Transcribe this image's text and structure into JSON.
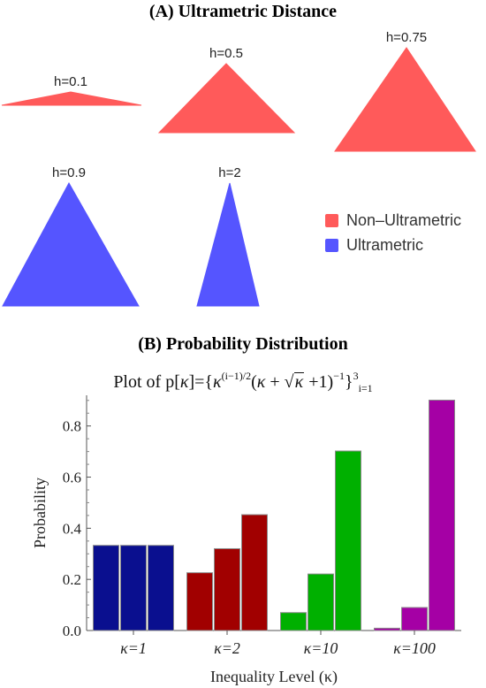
{
  "panel_a": {
    "title": "(A) Ultrametric Distance",
    "legend": [
      {
        "label": "Non–Ultrametric",
        "color": "#ff5a5a"
      },
      {
        "label": "Ultrametric",
        "color": "#5555ff"
      }
    ],
    "triangles": [
      {
        "label": "h=0.1",
        "h": 0.1,
        "kind": "non-ultrametric"
      },
      {
        "label": "h=0.5",
        "h": 0.5,
        "kind": "non-ultrametric"
      },
      {
        "label": "h=0.75",
        "h": 0.75,
        "kind": "non-ultrametric"
      },
      {
        "label": "h=0.9",
        "h": 0.9,
        "kind": "ultrametric"
      },
      {
        "label": "h=2",
        "h": 2,
        "kind": "ultrametric"
      }
    ]
  },
  "panel_b": {
    "title": "(B) Probability Distribution",
    "subtitle_prefix": "Plot of p[",
    "subtitle_kappa": "κ",
    "subtitle_mid": "]={",
    "subtitle_exp": "(i−1)/2",
    "subtitle_paren": "(",
    "subtitle_plus": " + ",
    "subtitle_sqrt": "κ",
    "subtitle_tail": " +1)",
    "subtitle_exp2": "−1",
    "subtitle_close": "}",
    "subtitle_sup3": "3",
    "subtitle_sub": "i=1"
  },
  "chart_data": {
    "type": "bar",
    "title": "",
    "xlabel": "Inequality Level (κ)",
    "ylabel": "Probability",
    "ylim": [
      0,
      0.9
    ],
    "yticks": [
      "0.0",
      "0.2",
      "0.4",
      "0.6",
      "0.8"
    ],
    "categories": [
      "κ=1",
      "κ=2",
      "κ=10",
      "κ=100"
    ],
    "groups": [
      {
        "values": [
          0.333,
          0.333,
          0.333
        ],
        "color": "#0a0f8f"
      },
      {
        "values": [
          0.226,
          0.32,
          0.453
        ],
        "color": "#a10000"
      },
      {
        "values": [
          0.07,
          0.221,
          0.702
        ],
        "color": "#00b000"
      },
      {
        "values": [
          0.009,
          0.09,
          0.901
        ],
        "color": "#a500a5"
      }
    ]
  }
}
